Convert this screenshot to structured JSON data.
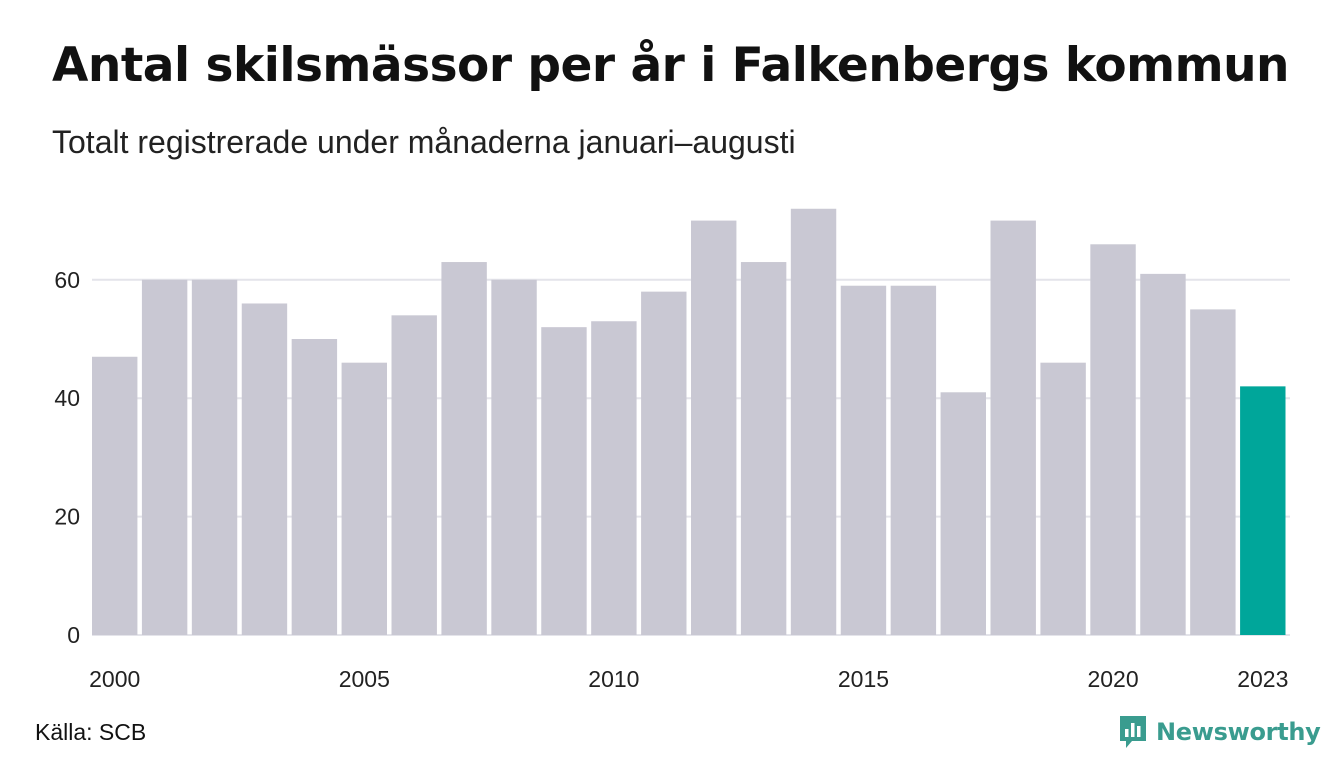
{
  "title": "Antal skilsmässor per år i Falkenbergs kommun",
  "subtitle": "Totalt registrerade under månaderna januari–augusti",
  "source": "Källa: SCB",
  "brand": {
    "name": "Newsworthy",
    "icon": "newsworthy-logo-icon"
  },
  "colors": {
    "bar": "#c9c8d3",
    "highlight": "#00a69a",
    "grid": "#e4e4ea",
    "brand": "#3a9c8f"
  },
  "chart_data": {
    "type": "bar",
    "title": "Antal skilsmässor per år i Falkenbergs kommun",
    "subtitle": "Totalt registrerade under månaderna januari–augusti",
    "xlabel": "",
    "ylabel": "",
    "categories": [
      2000,
      2001,
      2002,
      2003,
      2004,
      2005,
      2006,
      2007,
      2008,
      2009,
      2010,
      2011,
      2012,
      2013,
      2014,
      2015,
      2016,
      2017,
      2018,
      2019,
      2020,
      2021,
      2022,
      2023
    ],
    "values": [
      47,
      60,
      60,
      56,
      50,
      46,
      54,
      63,
      60,
      52,
      53,
      58,
      70,
      63,
      72,
      59,
      59,
      41,
      70,
      46,
      66,
      61,
      55,
      42
    ],
    "highlight_category": 2023,
    "ylim": [
      0,
      72
    ],
    "yticks": [
      0,
      20,
      40,
      60
    ],
    "xtick_labels": [
      "2000",
      "2005",
      "2010",
      "2015",
      "2020",
      "2023"
    ],
    "grid": true,
    "legend": false
  }
}
